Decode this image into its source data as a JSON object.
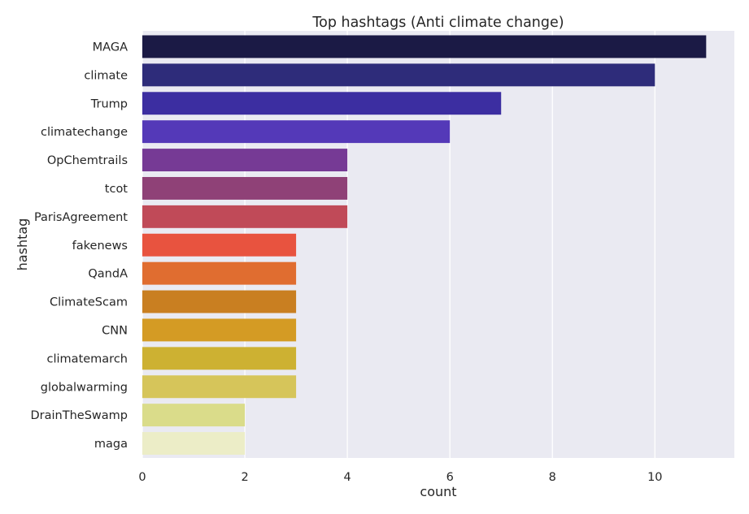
{
  "chart_data": {
    "type": "bar",
    "orientation": "horizontal",
    "title": "Top hashtags (Anti climate change)",
    "xlabel": "count",
    "ylabel": "hashtag",
    "xlim": [
      0,
      11.55
    ],
    "xticks": [
      0,
      2,
      4,
      6,
      8,
      10
    ],
    "grid": true,
    "background": "#eaeaf2",
    "grid_color": "#ffffff",
    "categories": [
      "MAGA",
      "climate",
      "Trump",
      "climatechange",
      "OpChemtrails",
      "tcot",
      "ParisAgreement",
      "fakenews",
      "QandA",
      "ClimateScam",
      "CNN",
      "climatemarch",
      "globalwarming",
      "DrainTheSwamp",
      "maga"
    ],
    "values": [
      11,
      10,
      7,
      6,
      4,
      4,
      4,
      3,
      3,
      3,
      3,
      3,
      3,
      2,
      2
    ],
    "colors": [
      "#1b1a45",
      "#2e2c7a",
      "#3c2ea1",
      "#5439b8",
      "#763a95",
      "#8f4177",
      "#c04a58",
      "#e8533f",
      "#e06d30",
      "#c97f21",
      "#d49b24",
      "#cdb132",
      "#d6c55a",
      "#dadc8a",
      "#ecedc7"
    ]
  }
}
